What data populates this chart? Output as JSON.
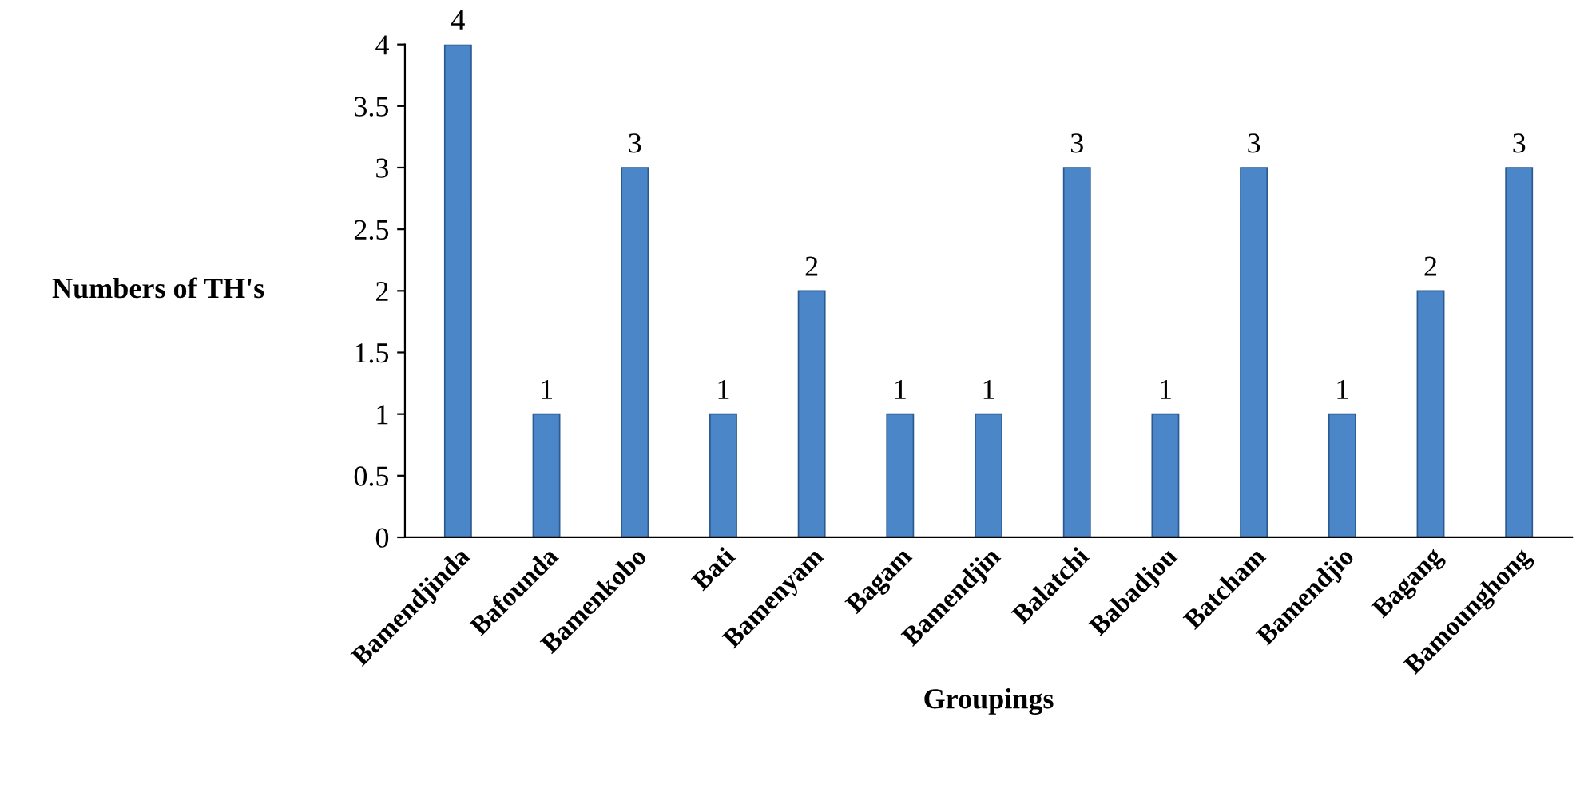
{
  "chart_data": {
    "type": "bar",
    "xlabel": "Groupings",
    "ylabel": "Numbers of TH's",
    "categories": [
      "Bamendjinda",
      "Bafounda",
      "Bamenkobo",
      "Bati",
      "Bamenyam",
      "Bagam",
      "Bamendjin",
      "Balatchi",
      "Babadjou",
      "Batcham",
      "Bamendjio",
      "Bagang",
      "Bamounghong"
    ],
    "values": [
      4,
      1,
      3,
      1,
      2,
      1,
      1,
      3,
      1,
      3,
      1,
      2,
      3
    ],
    "color": "#4a86c8",
    "ylim": [
      0,
      4
    ],
    "yticks": [
      0,
      0.5,
      1,
      1.5,
      2,
      2.5,
      3,
      3.5,
      4
    ],
    "data_labels": true,
    "grid": false
  }
}
